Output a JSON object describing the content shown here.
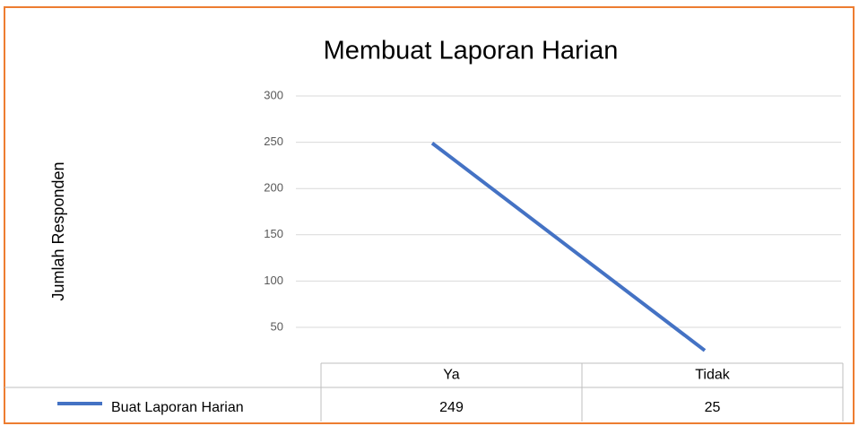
{
  "chart_data": {
    "type": "line",
    "title": "Membuat Laporan Harian",
    "y_label": "Jumlah Responden",
    "categories": [
      "Ya",
      "Tidak"
    ],
    "series": [
      {
        "name": "Buat Laporan Harian",
        "color": "#4472c4",
        "values": [
          249,
          25
        ]
      }
    ],
    "ylim": [
      0,
      300
    ],
    "yticks": [
      50,
      100,
      150,
      200,
      250,
      300
    ],
    "grid": true,
    "data_table": true
  }
}
